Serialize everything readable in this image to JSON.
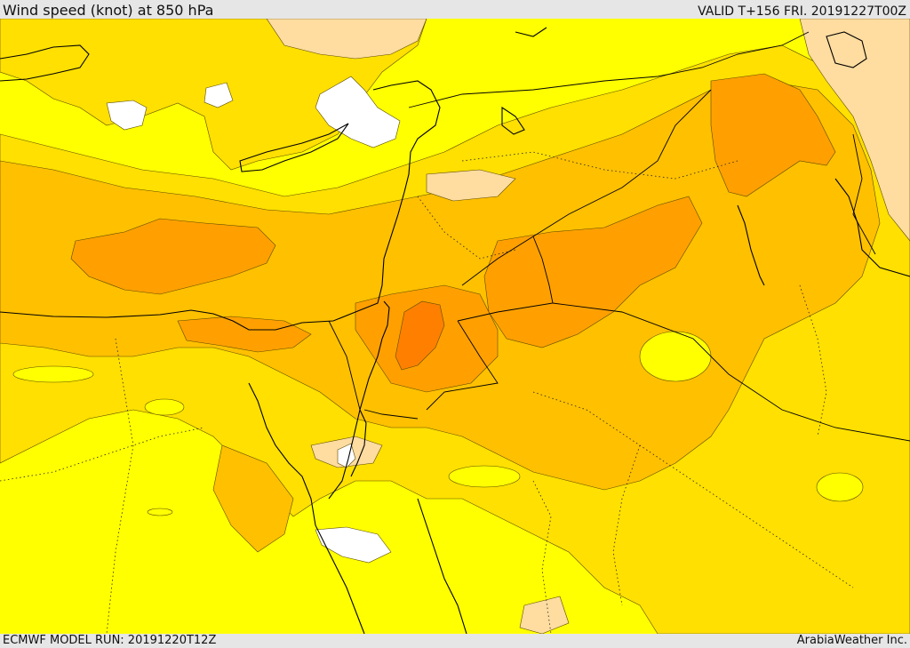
{
  "header": {
    "title": "Wind speed (knot) at 850 hPa",
    "valid": "VALID T+156 FRI. 20191227T00Z"
  },
  "footer": {
    "model_run": "ECMWF MODEL RUN: 20191220T12Z",
    "provider": "ArabiaWeather Inc."
  },
  "map": {
    "variable": "wind speed",
    "level": "850 hPa",
    "unit": "knot",
    "palette": {
      "lowest": "#ffffff",
      "low": "#ffff00",
      "mid": "#ffe000",
      "mid_high": "#ffc000",
      "high": "#ffa000",
      "highest": "#ff8000",
      "alt_band": "#ffdca0"
    }
  }
}
